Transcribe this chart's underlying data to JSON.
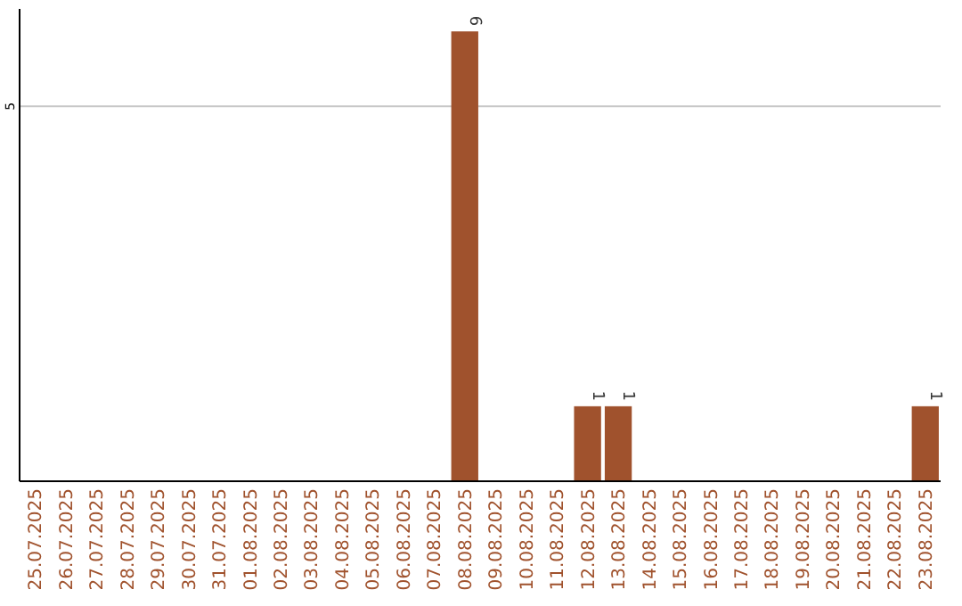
{
  "chart_data": {
    "type": "bar",
    "categories": [
      "25.07.2025",
      "26.07.2025",
      "27.07.2025",
      "28.07.2025",
      "29.07.2025",
      "30.07.2025",
      "31.07.2025",
      "01.08.2025",
      "02.08.2025",
      "03.08.2025",
      "04.08.2025",
      "05.08.2025",
      "06.08.2025",
      "07.08.2025",
      "08.08.2025",
      "09.08.2025",
      "10.08.2025",
      "11.08.2025",
      "12.08.2025",
      "13.08.2025",
      "14.08.2025",
      "15.08.2025",
      "16.08.2025",
      "17.08.2025",
      "18.08.2025",
      "19.08.2025",
      "20.08.2025",
      "21.08.2025",
      "22.08.2025",
      "23.08.2025"
    ],
    "values": [
      null,
      null,
      null,
      null,
      null,
      null,
      null,
      null,
      null,
      null,
      null,
      null,
      null,
      null,
      6,
      null,
      null,
      null,
      1,
      1,
      null,
      null,
      null,
      null,
      null,
      null,
      null,
      null,
      null,
      1
    ],
    "data_labels": true,
    "color": "#a0522d",
    "ylim": [
      0,
      6.3
    ],
    "ref_lines": [
      {
        "axis": "y",
        "value": 5,
        "label": "5",
        "color": "#c8c8c8"
      }
    ]
  }
}
